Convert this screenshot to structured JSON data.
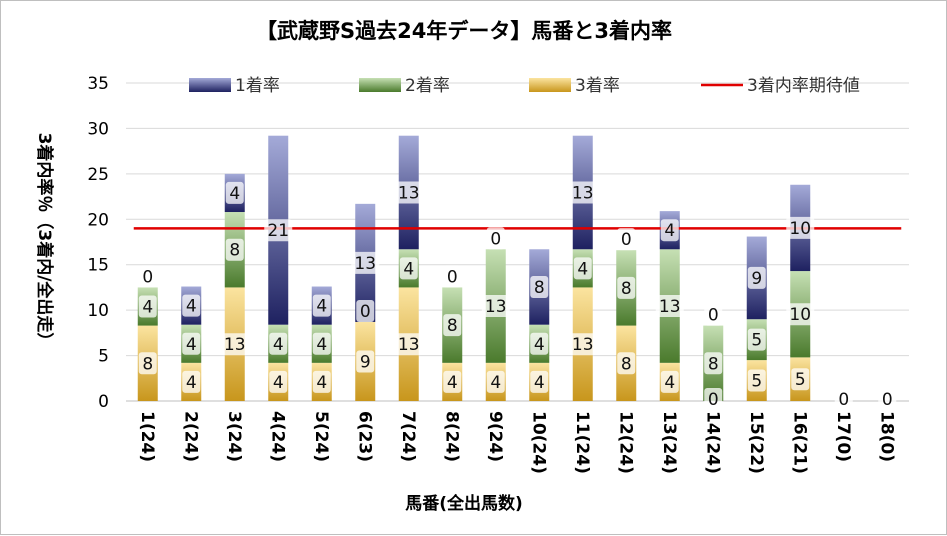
{
  "chart_data": {
    "type": "bar",
    "stacked": true,
    "title": "【武蔵野S過去24年データ】馬番と3着内率",
    "xlabel": "馬番(全出馬数)",
    "ylabel": "3着内率％（3着内/全出走）",
    "ylim": [
      0,
      35
    ],
    "yticks": [
      "0",
      "5",
      "10",
      "15",
      "20",
      "25",
      "30",
      "35"
    ],
    "ytick_values": [
      0,
      5,
      10,
      15,
      20,
      25,
      30,
      35
    ],
    "grid": true,
    "legend_position": "top",
    "categories": [
      "1(24)",
      "2(24)",
      "3(24)",
      "4(24)",
      "5(24)",
      "6(23)",
      "7(24)",
      "8(24)",
      "9(24)",
      "10(24)",
      "11(24)",
      "12(24)",
      "13(24)",
      "14(24)",
      "15(22)",
      "16(21)",
      "17(0)",
      "18(0)"
    ],
    "series": [
      {
        "name": "3着率",
        "color_light": "#fbe4a0",
        "color_dark": "#c8961c",
        "values": [
          8.3,
          4.2,
          12.5,
          4.2,
          4.2,
          8.7,
          12.5,
          4.2,
          4.2,
          4.2,
          12.5,
          8.3,
          4.2,
          0,
          4.5,
          4.8,
          0,
          0
        ],
        "labels": [
          "8",
          "4",
          "13",
          "4",
          "4",
          "9",
          "13",
          "4",
          "4",
          "4",
          "13",
          "8",
          "4",
          "0",
          "5",
          "5",
          "",
          ""
        ]
      },
      {
        "name": "2着率",
        "color_light": "#c6e0b4",
        "color_dark": "#4a7a2c",
        "values": [
          4.2,
          4.2,
          8.3,
          4.2,
          4.2,
          0,
          4.2,
          8.3,
          12.5,
          4.2,
          4.2,
          8.3,
          12.5,
          8.3,
          4.5,
          9.5,
          0,
          0
        ],
        "labels": [
          "4",
          "4",
          "8",
          "4",
          "4",
          "0",
          "4",
          "8",
          "13",
          "4",
          "4",
          "8",
          "13",
          "8",
          "5",
          "10",
          "",
          ""
        ]
      },
      {
        "name": "1着率",
        "color_light": "#a4aad8",
        "color_dark": "#1e2160",
        "values": [
          0,
          4.2,
          4.2,
          20.8,
          4.2,
          13.0,
          12.5,
          0,
          0,
          8.3,
          12.5,
          0,
          4.2,
          0,
          9.1,
          9.5,
          0,
          0
        ],
        "labels": [
          "0",
          "4",
          "4",
          "21",
          "4",
          "13",
          "13",
          "0",
          "0",
          "8",
          "13",
          "0",
          "4",
          "0",
          "9",
          "10",
          "0",
          "0"
        ]
      }
    ],
    "reference_line": {
      "name": "3着内率期待値",
      "value": 19,
      "color": "#e00000"
    }
  }
}
